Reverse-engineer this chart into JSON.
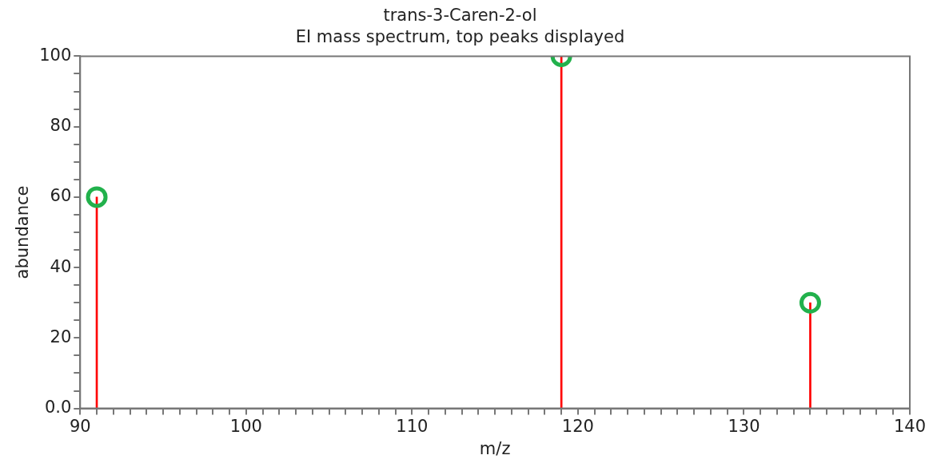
{
  "chart_data": {
    "type": "bar",
    "title": "trans-3-Caren-2-ol",
    "subtitle": "EI mass spectrum, top peaks displayed",
    "xlabel": "m/z",
    "ylabel": "abundance",
    "series": [
      {
        "color": "#ff0000",
        "x": [
          91,
          119,
          134
        ],
        "values": [
          60,
          100,
          30
        ]
      },
      {
        "type": "scatter",
        "color": "#22b14c",
        "marker": "circle",
        "x": [
          91,
          119,
          134
        ],
        "values": [
          60,
          100,
          30
        ]
      }
    ],
    "xlim": [
      90,
      140
    ],
    "xticks": [
      90,
      {
        "value": 91,
        "label": null
      },
      {
        "value": 92,
        "label": null
      },
      {
        "value": 93,
        "label": null
      },
      {
        "value": 94,
        "label": null
      },
      {
        "value": 95,
        "label": null
      },
      {
        "value": 96,
        "label": null
      },
      {
        "value": 97,
        "label": null
      },
      {
        "value": 98,
        "label": null
      },
      {
        "value": 99,
        "label": null
      },
      100,
      {
        "value": 101,
        "label": null
      },
      {
        "value": 102,
        "label": null
      },
      {
        "value": 103,
        "label": null
      },
      {
        "value": 104,
        "label": null
      },
      {
        "value": 105,
        "label": null
      },
      {
        "value": 106,
        "label": null
      },
      {
        "value": 107,
        "label": null
      },
      {
        "value": 108,
        "label": null
      },
      {
        "value": 109,
        "label": null
      },
      110,
      {
        "value": 111,
        "label": null
      },
      {
        "value": 112,
        "label": null
      },
      {
        "value": 113,
        "label": null
      },
      {
        "value": 114,
        "label": null
      },
      {
        "value": 115,
        "label": null
      },
      {
        "value": 116,
        "label": null
      },
      {
        "value": 117,
        "label": null
      },
      {
        "value": 118,
        "label": null
      },
      {
        "value": 119,
        "label": null
      },
      120,
      {
        "value": 121,
        "label": null
      },
      {
        "value": 122,
        "label": null
      },
      {
        "value": 123,
        "label": null
      },
      {
        "value": 124,
        "label": null
      },
      {
        "value": 125,
        "label": null
      },
      {
        "value": 126,
        "label": null
      },
      {
        "value": 127,
        "label": null
      },
      {
        "value": 128,
        "label": null
      },
      {
        "value": 129,
        "label": null
      },
      130,
      {
        "value": 131,
        "label": null
      },
      {
        "value": 132,
        "label": null
      },
      {
        "value": 133,
        "label": null
      },
      {
        "value": 134,
        "label": null
      },
      {
        "value": 135,
        "label": null
      },
      {
        "value": 136,
        "label": null
      },
      {
        "value": 137,
        "label": null
      },
      {
        "value": 138,
        "label": null
      },
      {
        "value": 139,
        "label": null
      },
      140
    ],
    "ylim": [
      0,
      100
    ],
    "yticks": [
      {
        "value": 0,
        "label": "0.0"
      },
      {
        "value": 5,
        "label": null
      },
      {
        "value": 10,
        "label": null
      },
      {
        "value": 15,
        "label": null
      },
      20,
      {
        "value": 25,
        "label": null
      },
      {
        "value": 30,
        "label": null
      },
      {
        "value": 35,
        "label": null
      },
      40,
      {
        "value": 45,
        "label": null
      },
      {
        "value": 50,
        "label": null
      },
      {
        "value": 55,
        "label": null
      },
      60,
      {
        "value": 65,
        "label": null
      },
      {
        "value": 70,
        "label": null
      },
      {
        "value": 75,
        "label": null
      },
      80,
      {
        "value": 85,
        "label": null
      },
      {
        "value": 90,
        "label": null
      },
      {
        "value": 95,
        "label": null
      },
      100
    ],
    "grid": false,
    "legend": false
  }
}
